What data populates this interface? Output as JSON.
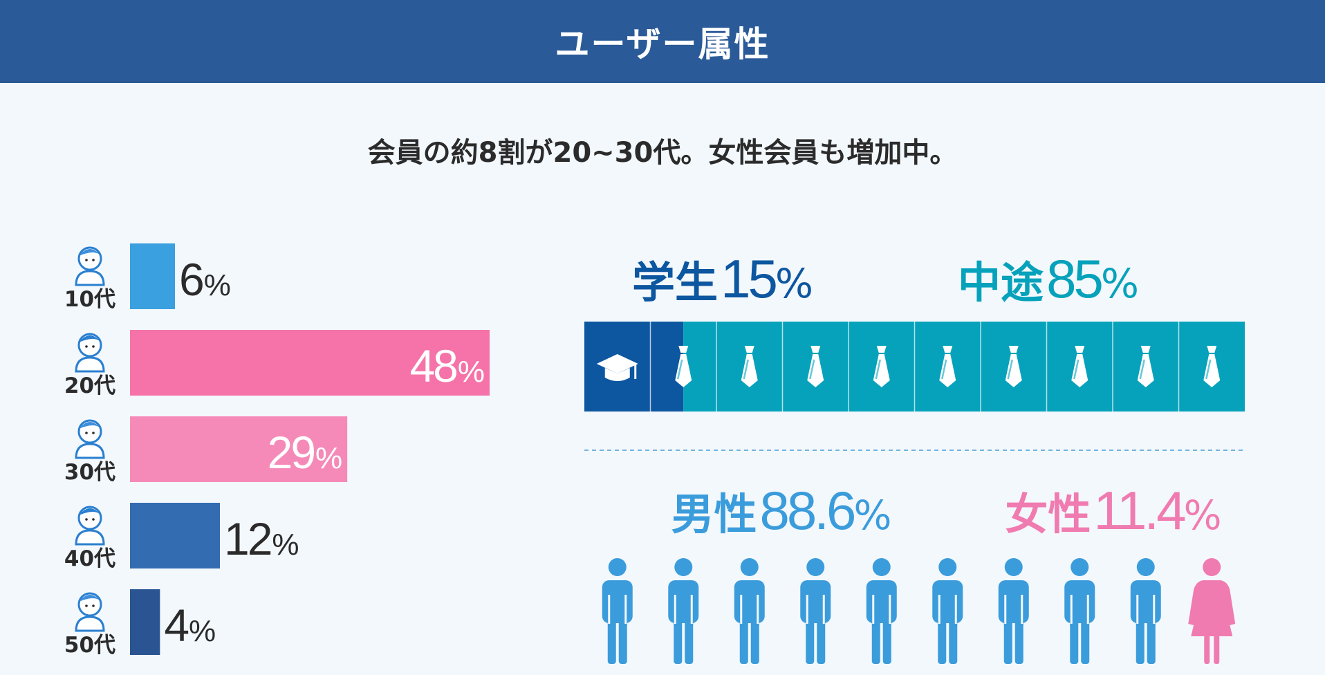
{
  "header": {
    "title": "ユーザー属性"
  },
  "subtitle": "会員の約8割が20~30代。女性会員も増加中。",
  "colors": {
    "header_bg": "#2a5a98",
    "page_bg": "#f3f8fc",
    "age_10s": "#3aa0e0",
    "age_20s": "#f573a8",
    "age_30s": "#f58ab8",
    "age_40s": "#336cb0",
    "age_50s": "#2a5592",
    "student": "#0d56a0",
    "career": "#06a2bb",
    "male": "#3b9cdc",
    "female": "#f07bb0",
    "text_dark": "#2b2b2b"
  },
  "chart_data": [
    {
      "type": "bar",
      "orientation": "horizontal",
      "categories": [
        "10代",
        "20代",
        "30代",
        "40代",
        "50代"
      ],
      "values": [
        6,
        48,
        29,
        12,
        4
      ],
      "value_labels": [
        "6%",
        "48%",
        "29%",
        "12%",
        "4%"
      ],
      "icons": [
        "teen-avatar-icon",
        "woman-avatar-icon",
        "man-avatar-icon",
        "woman-headset-avatar-icon",
        "older-man-avatar-icon"
      ],
      "xlim": [
        0,
        48
      ]
    },
    {
      "type": "bar",
      "stacked": true,
      "segments": [
        {
          "label": "学生",
          "value": 15,
          "value_label": "15%",
          "icon": "graduation-cap-icon"
        },
        {
          "label": "中途",
          "value": 85,
          "value_label": "85%",
          "icon": "necktie-icon"
        }
      ],
      "cells": 10
    },
    {
      "type": "bar",
      "stacked": true,
      "segments": [
        {
          "label": "男性",
          "value": 88.6,
          "value_label": "88.6%",
          "icon": "male-person-icon"
        },
        {
          "label": "女性",
          "value": 11.4,
          "value_label": "11.4%",
          "icon": "female-person-icon"
        }
      ],
      "figures": 10
    }
  ]
}
